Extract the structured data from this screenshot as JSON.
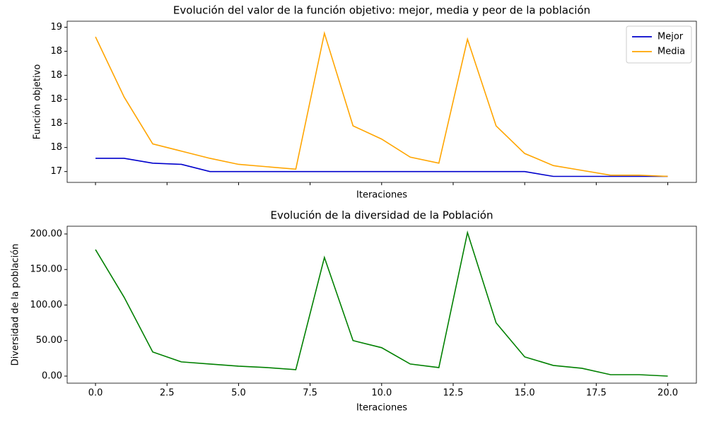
{
  "chart_data": [
    {
      "type": "line",
      "title": "Evolución del valor de la función objetivo: mejor, media y peor de la población",
      "xlabel": "Iteraciones",
      "ylabel": "Función objetivo",
      "x": [
        0,
        1,
        2,
        3,
        4,
        5,
        6,
        7,
        8,
        9,
        10,
        11,
        12,
        13,
        14,
        15,
        16,
        17,
        18,
        19,
        20
      ],
      "series": [
        {
          "name": "Mejor",
          "color": "#0000cc",
          "values": [
            17.51,
            17.51,
            17.47,
            17.46,
            17.4,
            17.4,
            17.4,
            17.4,
            17.4,
            17.4,
            17.4,
            17.4,
            17.4,
            17.4,
            17.4,
            17.4,
            17.36,
            17.36,
            17.36,
            17.36,
            17.36
          ]
        },
        {
          "name": "Media",
          "color": "#ffa500",
          "values": [
            18.52,
            18.02,
            17.63,
            17.57,
            17.51,
            17.46,
            17.44,
            17.42,
            18.55,
            17.78,
            17.67,
            17.52,
            17.47,
            18.5,
            17.78,
            17.55,
            17.45,
            17.41,
            17.37,
            17.37,
            17.36
          ]
        }
      ],
      "xlim": [
        -0.99,
        21.0
      ],
      "xticks": [
        0,
        2.5,
        5,
        7.5,
        10,
        12.5,
        15,
        17.5,
        20
      ],
      "xtick_labels": false,
      "ylim": [
        17.31,
        18.65
      ],
      "yticks": [
        {
          "value": 17.4,
          "label": "17"
        },
        {
          "value": 17.6,
          "label": "18"
        },
        {
          "value": 17.8,
          "label": "18"
        },
        {
          "value": 18.0,
          "label": "18"
        },
        {
          "value": 18.2,
          "label": "18"
        },
        {
          "value": 18.4,
          "label": "18"
        },
        {
          "value": 18.6,
          "label": "19"
        }
      ],
      "legend": "upper right"
    },
    {
      "type": "line",
      "title": "Evolución de la diversidad de la Población",
      "xlabel": "Iteraciones",
      "ylabel": "Diversidad de la población",
      "x": [
        0,
        1,
        2,
        3,
        4,
        5,
        6,
        7,
        8,
        9,
        10,
        11,
        12,
        13,
        14,
        15,
        16,
        17,
        18,
        19,
        20
      ],
      "series": [
        {
          "color": "#008000",
          "values": [
            178,
            111,
            34,
            20,
            17,
            14,
            12,
            9,
            167,
            50,
            40,
            17,
            12,
            202,
            75,
            27,
            15,
            11,
            2,
            2,
            0
          ]
        }
      ],
      "xlim": [
        -0.99,
        21.0
      ],
      "xticks": [
        {
          "value": 0,
          "label": "0.0"
        },
        {
          "value": 2.5,
          "label": "2.5"
        },
        {
          "value": 5,
          "label": "5.0"
        },
        {
          "value": 7.5,
          "label": "7.5"
        },
        {
          "value": 10,
          "label": "10.0"
        },
        {
          "value": 12.5,
          "label": "12.5"
        },
        {
          "value": 15,
          "label": "15.0"
        },
        {
          "value": 17.5,
          "label": "17.5"
        },
        {
          "value": 20,
          "label": "20.0"
        }
      ],
      "ylim": [
        -9.95,
        210.9
      ],
      "yticks": [
        {
          "value": 0,
          "label": "0.00"
        },
        {
          "value": 50,
          "label": "50.00"
        },
        {
          "value": 100,
          "label": "100.00"
        },
        {
          "value": 150,
          "label": "150.00"
        },
        {
          "value": 200,
          "label": "200.00"
        }
      ]
    }
  ]
}
